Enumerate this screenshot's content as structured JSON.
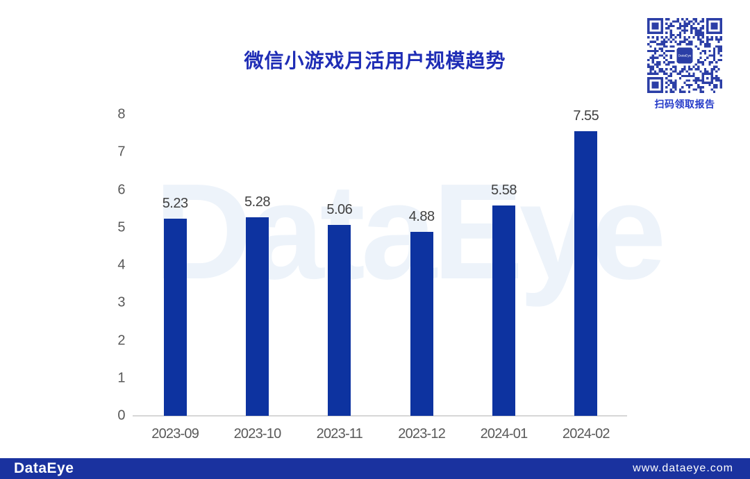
{
  "page": {
    "background": "#FFFFFF"
  },
  "title": {
    "text": "微信小游戏月活用户规模趋势",
    "color": "#1F2DB5"
  },
  "qr": {
    "caption": "扫码领取报告",
    "center_label": "DataEye",
    "color": "#2B3EA6"
  },
  "watermark": {
    "text": "DataEye",
    "color": "#EDF3FA"
  },
  "footer": {
    "brand": "DataEye",
    "url": "www.dataeye.com",
    "background": "#1A329F"
  },
  "chart_data": {
    "type": "bar",
    "title": "微信小游戏月活用户规模趋势",
    "categories": [
      "2023-09",
      "2023-10",
      "2023-11",
      "2023-12",
      "2024-01",
      "2024-02"
    ],
    "values": [
      5.23,
      5.28,
      5.06,
      4.88,
      5.58,
      7.55
    ],
    "value_labels": [
      "5.23",
      "5.28",
      "5.06",
      "4.88",
      "5.58",
      "7.55"
    ],
    "xlabel": "",
    "ylabel": "",
    "ylim": [
      0,
      8
    ],
    "yticks": [
      0,
      1,
      2,
      3,
      4,
      5,
      6,
      7,
      8
    ],
    "grid": false,
    "legend": false,
    "bar_color": "#0D33A0",
    "axis_line_color": "#D6D6D6",
    "tick_label_color": "#595959",
    "value_label_color": "#404040"
  }
}
